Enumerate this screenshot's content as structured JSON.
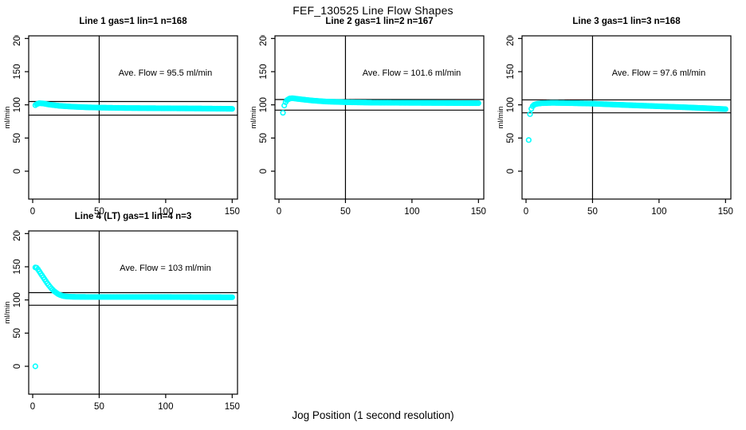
{
  "title": "FEF_130525  Line Flow Shapes",
  "xlabel": "Jog Position (1 second resolution)",
  "colors": {
    "points": "#00FFFF",
    "axis": "#000000",
    "background": "#FFFFFF"
  },
  "chart_data": {
    "type": "scatter",
    "marker": "open-circle",
    "ylabel": "ml/min",
    "x_ticks": [
      0,
      50,
      100,
      150
    ],
    "y_ticks": [
      0,
      50,
      100,
      150,
      200
    ],
    "xlim": [
      -3,
      154
    ],
    "ylim": [
      -42,
      204
    ],
    "vline_x": 50,
    "grid": false,
    "panels": [
      {
        "title": "Line 1 gas=1 lin=1 n=168",
        "line": 1,
        "gas": 1,
        "lin": 1,
        "n": 168,
        "annotation": "Ave. Flow =  95.5  ml/min",
        "ave_flow": 95.5,
        "ref_lines": [
          105,
          84.5
        ],
        "points": [
          [
            2,
            99.5
          ],
          [
            3,
            101
          ],
          [
            5,
            102.5
          ],
          [
            8,
            102
          ],
          [
            12,
            100.5
          ],
          [
            16,
            99.5
          ],
          [
            20,
            98.5
          ],
          [
            25,
            97.8
          ],
          [
            30,
            97.2
          ],
          [
            40,
            96.3
          ],
          [
            50,
            95.8
          ],
          [
            70,
            95.2
          ],
          [
            100,
            94.8
          ],
          [
            125,
            94.5
          ],
          [
            150,
            94
          ]
        ],
        "outliers": []
      },
      {
        "title": "Line 2 gas=1 lin=2 n=167",
        "line": 2,
        "gas": 1,
        "lin": 2,
        "n": 167,
        "annotation": "Ave. Flow =  101.6  ml/min",
        "ave_flow": 101.6,
        "ref_lines": [
          108,
          92
        ],
        "points": [
          [
            4,
            99
          ],
          [
            5,
            104
          ],
          [
            6,
            107
          ],
          [
            8,
            109.5
          ],
          [
            10,
            110
          ],
          [
            14,
            109
          ],
          [
            18,
            108
          ],
          [
            25,
            106.5
          ],
          [
            35,
            105
          ],
          [
            50,
            104
          ],
          [
            70,
            103.3
          ],
          [
            100,
            103
          ],
          [
            125,
            102.8
          ],
          [
            150,
            102.5
          ]
        ],
        "outliers": [
          [
            3,
            88
          ]
        ]
      },
      {
        "title": "Line 3 gas=1 lin=3 n=168",
        "line": 3,
        "gas": 1,
        "lin": 3,
        "n": 168,
        "annotation": "Ave. Flow =  97.6  ml/min",
        "ave_flow": 97.6,
        "ref_lines": [
          107.5,
          88
        ],
        "points": [
          [
            4,
            94
          ],
          [
            5,
            98
          ],
          [
            6,
            100
          ],
          [
            8,
            101.5
          ],
          [
            12,
            102.5
          ],
          [
            20,
            103
          ],
          [
            35,
            102.5
          ],
          [
            50,
            101.8
          ],
          [
            65,
            100.5
          ],
          [
            80,
            99.3
          ],
          [
            100,
            97.8
          ],
          [
            120,
            96.3
          ],
          [
            135,
            95
          ],
          [
            150,
            93.5
          ]
        ],
        "outliers": [
          [
            2,
            47
          ],
          [
            3,
            86
          ]
        ]
      },
      {
        "title": "Line 4 (LT) gas=1 lin=4 n=3",
        "line": 4,
        "gas": 1,
        "lin": 4,
        "n": 3,
        "annotation": "Ave. Flow =  103  ml/min",
        "ave_flow": 103,
        "ref_lines": [
          111,
          92
        ],
        "points": [
          [
            2,
            149
          ],
          [
            3,
            148.5
          ],
          [
            4,
            146
          ],
          [
            5,
            143
          ],
          [
            6,
            140
          ],
          [
            7,
            137
          ],
          [
            8,
            134
          ],
          [
            9,
            131
          ],
          [
            10,
            128
          ],
          [
            11,
            125
          ],
          [
            12,
            122.5
          ],
          [
            13,
            120
          ],
          [
            14,
            117.5
          ],
          [
            15,
            115.5
          ],
          [
            16,
            113.5
          ],
          [
            17,
            112
          ],
          [
            18,
            110.5
          ],
          [
            19,
            109
          ],
          [
            20,
            108
          ],
          [
            22,
            106.5
          ],
          [
            24,
            105.5
          ],
          [
            27,
            105
          ],
          [
            30,
            104.7
          ],
          [
            40,
            104.5
          ],
          [
            60,
            104.5
          ],
          [
            80,
            104.5
          ],
          [
            100,
            104.4
          ],
          [
            120,
            104.2
          ],
          [
            150,
            104
          ]
        ],
        "outliers": [
          [
            2,
            0
          ]
        ]
      }
    ]
  }
}
